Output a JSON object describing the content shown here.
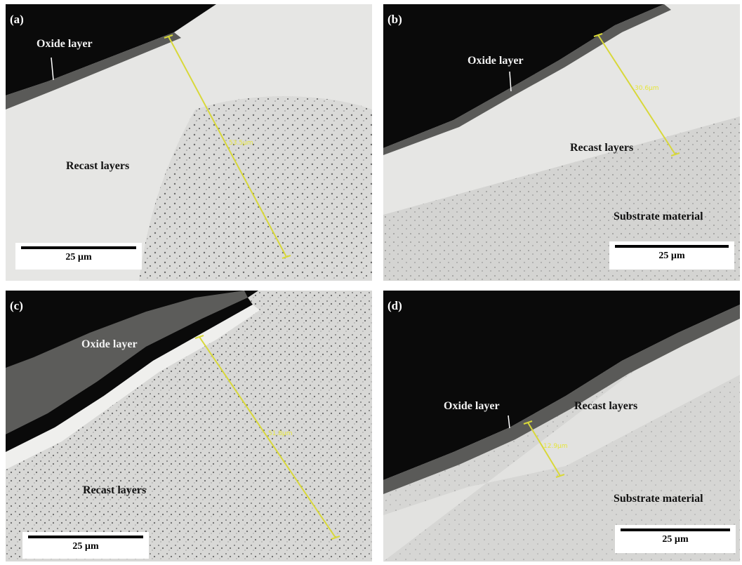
{
  "panels": [
    {
      "tag": "(a)",
      "labels": {
        "oxide": "Oxide layer",
        "recast": "Recast layers"
      },
      "scale": "25 µm",
      "measure": "53.5µm"
    },
    {
      "tag": "(b)",
      "labels": {
        "oxide": "Oxide layer",
        "recast": "Recast layers",
        "substrate": "Substrate material"
      },
      "scale": "25 µm",
      "measure": "30.6µm"
    },
    {
      "tag": "(c)",
      "labels": {
        "oxide": "Oxide layer",
        "recast": "Recast layers"
      },
      "scale": "25 µm",
      "measure": "51.8µm"
    },
    {
      "tag": "(d)",
      "labels": {
        "oxide": "Oxide layer",
        "recast": "Recast layers",
        "substrate": "Substrate material"
      },
      "scale": "25 µm",
      "measure": "12.9µm"
    }
  ],
  "colors": {
    "vacuum": "#0a0a0a",
    "recast": "#e9e9e7",
    "substrate": "#d6d6d4",
    "oxide": "#5a5a58",
    "measure_line": "#d8d83a"
  }
}
